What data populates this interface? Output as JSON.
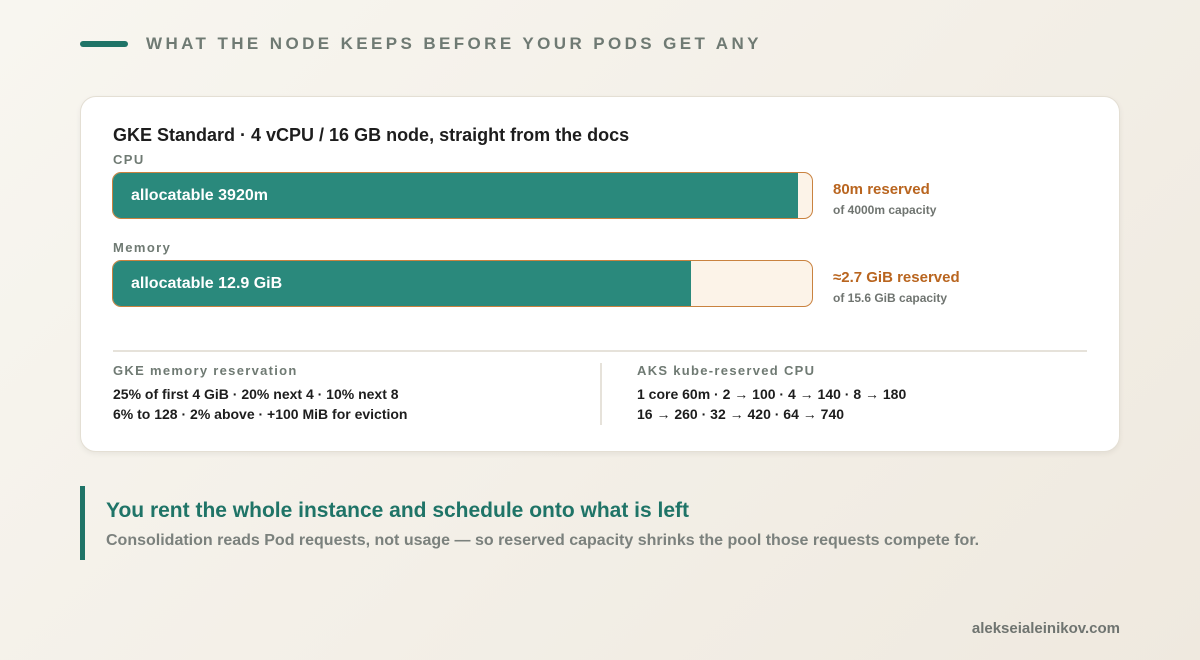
{
  "header": {
    "title": "WHAT THE NODE KEEPS BEFORE YOUR PODS GET ANY",
    "accent_color": "#1f7467"
  },
  "card": {
    "title": "GKE Standard · 4 vCPU / 16 GB node, straight from the docs"
  },
  "chart_data": {
    "type": "bar",
    "orientation": "horizontal",
    "stacked": true,
    "categories": [
      "CPU",
      "Memory"
    ],
    "series": [
      {
        "name": "allocatable",
        "color": "#2a897c",
        "values": [
          3920,
          12.9
        ],
        "labels": [
          "allocatable 3920m",
          "allocatable 12.9 GiB"
        ]
      },
      {
        "name": "reserved",
        "color": "#fcf3e8",
        "values": [
          80,
          2.7
        ],
        "labels": [
          "80m reserved",
          "≈2.7 GiB reserved"
        ]
      }
    ],
    "capacity": [
      4000,
      15.6
    ],
    "capacity_labels": [
      "of 4000m capacity",
      "of 15.6 GiB capacity"
    ],
    "units": [
      "m",
      "GiB"
    ],
    "reserved_color": "#b9651f",
    "title": "GKE Standard · 4 vCPU / 16 GB node, straight from the docs"
  },
  "notes": {
    "gke": {
      "title": "GKE memory reservation",
      "lines": [
        "25% of first 4 GiB · 20% next 4 · 10% next 8",
        "6% to 128 · 2% above · +100 MiB for eviction"
      ]
    },
    "aks": {
      "title": "AKS kube-reserved CPU",
      "lines": [
        "1 core 60m · 2 → 100 · 4 → 140 · 8 → 180",
        "16 → 260 · 32 → 420 · 64 → 740"
      ]
    }
  },
  "callout": {
    "title": "You rent the whole instance and schedule onto what is left",
    "subtitle": "Consolidation reads Pod requests, not usage — so reserved capacity shrinks the pool those requests compete for."
  },
  "footer": {
    "site": "alekseialeinikov.com"
  }
}
